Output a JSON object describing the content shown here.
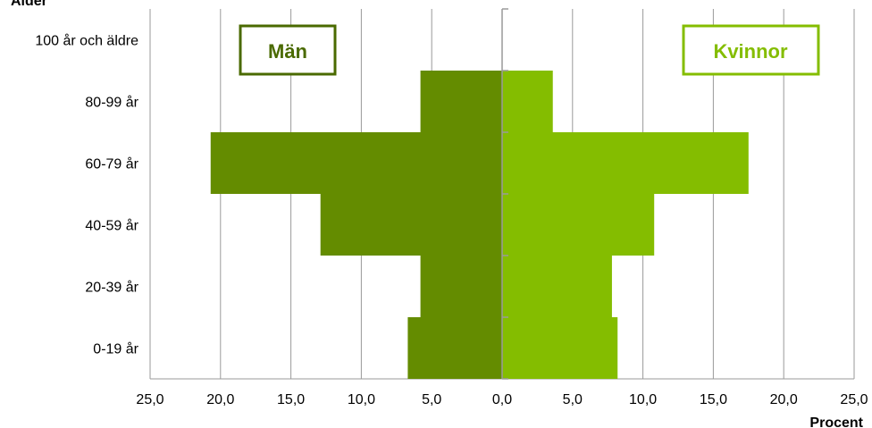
{
  "chart_data": {
    "type": "bar",
    "orientation": "horizontal",
    "subtype": "population-pyramid",
    "y_title": "Ålder",
    "x_title": "Procent",
    "categories": [
      "0-19 år",
      "20-39 år",
      "40-59 år",
      "60-79 år",
      "80-99 år",
      "100 år och äldre"
    ],
    "series": [
      {
        "name": "Män",
        "side": "left",
        "color": "#648C00",
        "values": [
          6.7,
          5.8,
          12.9,
          20.7,
          5.8,
          0
        ]
      },
      {
        "name": "Kvinnor",
        "side": "right",
        "color": "#84BD00",
        "values": [
          8.2,
          7.8,
          10.8,
          17.5,
          3.6,
          0
        ]
      }
    ],
    "xlim": [
      -25,
      25
    ],
    "x_ticks": [
      "25,0",
      "20,0",
      "15,0",
      "10,0",
      "5,0",
      "0,0",
      "5,0",
      "10,0",
      "15,0",
      "20,0",
      "25,0"
    ],
    "grid": true,
    "legend": {
      "left_label": "Män",
      "right_label": "Kvinnor",
      "left_color": "#4A6A00",
      "right_color": "#84BD00"
    }
  }
}
